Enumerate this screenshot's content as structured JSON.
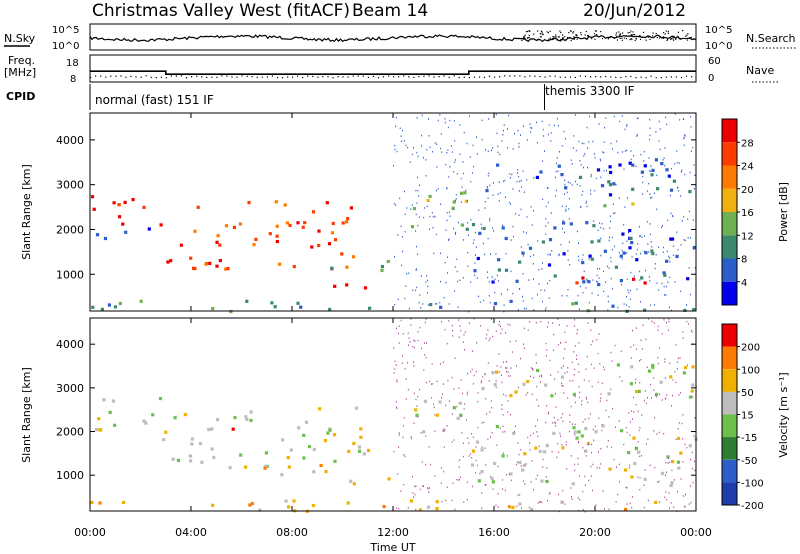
{
  "header": {
    "station": "Christmas Valley West (fitACF)",
    "beam": "Beam 14",
    "date": "20/Jun/2012"
  },
  "noise_panel": {
    "left_label": "N.Sky",
    "right_label": "N.Search",
    "left_ticks": [
      "10^5",
      "10^0"
    ],
    "right_ticks": [
      "10^5",
      "10^0"
    ]
  },
  "freq_panel": {
    "left_label_line1": "Freq.",
    "left_label_line2": "[MHz]",
    "right_label": "Nave",
    "left_ticks": [
      "18",
      "8"
    ],
    "right_ticks": [
      "60",
      "0"
    ],
    "freq_steps": [
      {
        "start_hour": 0.0,
        "end_hour": 3.0,
        "freq": 12.0
      },
      {
        "start_hour": 3.0,
        "end_hour": 15.0,
        "freq": 10.9
      },
      {
        "start_hour": 15.0,
        "end_hour": 24.0,
        "freq": 12.0
      }
    ],
    "nave_level": 13
  },
  "cpid": {
    "label": "CPID",
    "modes": [
      {
        "start_hour": 0.0,
        "end_hour": 18.0,
        "label": "normal (fast) 151 IF"
      },
      {
        "start_hour": 18.0,
        "end_hour": 24.0,
        "label": "themis 3300 IF"
      }
    ]
  },
  "power_panel": {
    "ylabel": "Slant Range [km]",
    "cbar_label": "Power [dB]",
    "cbar_ticks": [
      "28",
      "24",
      "20",
      "16",
      "12",
      "8",
      "4"
    ],
    "colors": [
      "#0000ee",
      "#2a5ec8",
      "#3b8a6e",
      "#6fb052",
      "#f0b010",
      "#ff7a00",
      "#ff3c00",
      "#ee0000"
    ]
  },
  "velocity_panel": {
    "ylabel": "Slant Range [km]",
    "cbar_label": "Velocity [m s⁻¹]",
    "cbar_ticks": [
      "200",
      "100",
      "50",
      "15",
      "-15",
      "-50",
      "-100",
      "-200"
    ],
    "colors": [
      "#1f3da8",
      "#2a5ec8",
      "#2e7d32",
      "#6cc04a",
      "#bdbdbd",
      "#f0b000",
      "#ff7a00",
      "#ee0000"
    ]
  },
  "xaxis": {
    "label": "Time UT",
    "ticks": [
      "00:00",
      "04:00",
      "08:00",
      "12:00",
      "16:00",
      "20:00",
      "00:00"
    ]
  },
  "chart_data": {
    "type": "heatmap",
    "title": "Christmas Valley West (fitACF) Beam 14 20/Jun/2012",
    "xlabel": "Time UT",
    "ylabel": "Slant Range [km]",
    "xlim_hours": [
      0,
      24
    ],
    "ylim_km": [
      180,
      4600
    ],
    "yticks": [
      1000,
      2000,
      3000,
      4000
    ],
    "power_regions": [
      {
        "t0": 0.0,
        "t1": 3.0,
        "r0": 2100,
        "r1": 2800,
        "level": 7
      },
      {
        "t0": 0.2,
        "t1": 2.8,
        "r0": 1800,
        "r1": 2100,
        "level": 1
      },
      {
        "t0": 3.0,
        "t1": 6.0,
        "r0": 1200,
        "r1": 1700,
        "level": 7
      },
      {
        "t0": 4.0,
        "t1": 10.5,
        "r0": 1100,
        "r1": 2700,
        "level": 6
      },
      {
        "t0": 9.5,
        "t1": 12.0,
        "r0": 700,
        "r1": 950,
        "level": 7
      },
      {
        "t0": 9.0,
        "t1": 12.0,
        "r0": 1100,
        "r1": 1400,
        "level": 3
      },
      {
        "t0": 12.5,
        "t1": 15.0,
        "r0": 2000,
        "r1": 3000,
        "level": 3
      },
      {
        "t0": 15.0,
        "t1": 24.0,
        "r0": 800,
        "r1": 2200,
        "level": 1
      },
      {
        "t0": 17.5,
        "t1": 22.0,
        "r0": 800,
        "r1": 1000,
        "level": 7
      },
      {
        "t0": 15.5,
        "t1": 24.0,
        "r0": 2800,
        "r1": 3600,
        "level": 1
      },
      {
        "t0": 20.0,
        "t1": 21.5,
        "r0": 2500,
        "r1": 3000,
        "level": 3
      },
      {
        "t0": 0.0,
        "t1": 24.0,
        "r0": 200,
        "r1": 450,
        "level": 2
      }
    ],
    "velocity_regions": [
      {
        "t0": 0.0,
        "t1": 3.0,
        "r0": 1800,
        "r1": 2800,
        "level": 4
      },
      {
        "t0": 3.0,
        "t1": 11.0,
        "r0": 1200,
        "r1": 2600,
        "level": 4
      },
      {
        "t0": 4.5,
        "t1": 6.0,
        "r0": 2000,
        "r1": 2200,
        "level": 7
      },
      {
        "t0": 5.0,
        "t1": 9.5,
        "r0": 1000,
        "r1": 1300,
        "level": 5
      },
      {
        "t0": 9.5,
        "t1": 12.0,
        "r0": 700,
        "r1": 1000,
        "level": 5
      },
      {
        "t0": 12.5,
        "t1": 15.0,
        "r0": 2000,
        "r1": 3000,
        "level": 4
      },
      {
        "t0": 15.0,
        "t1": 24.0,
        "r0": 800,
        "r1": 2200,
        "level": 4
      },
      {
        "t0": 15.5,
        "t1": 24.0,
        "r0": 2800,
        "r1": 3600,
        "level": 4
      },
      {
        "t0": 0.0,
        "t1": 24.0,
        "r0": 200,
        "r1": 450,
        "level": 5
      }
    ]
  }
}
